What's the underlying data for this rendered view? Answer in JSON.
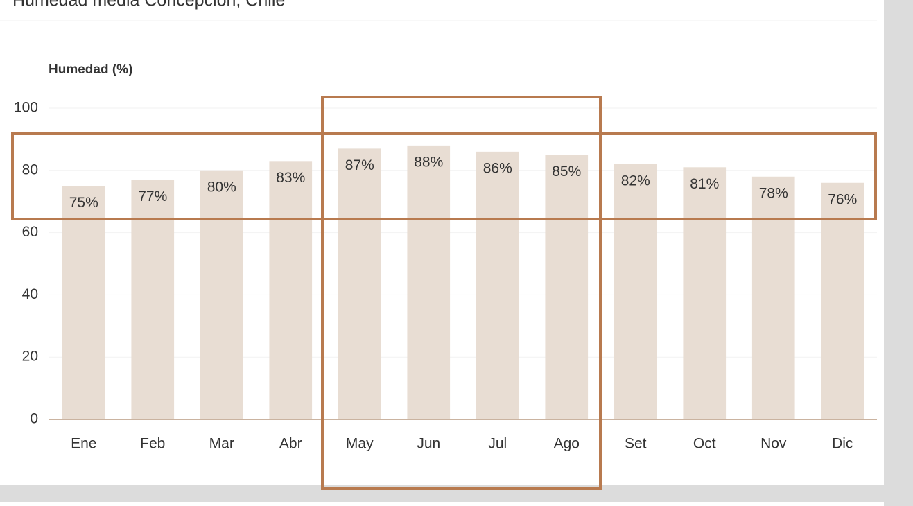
{
  "chart_data": {
    "type": "bar",
    "title": "Humedad media Concepción, Chile",
    "y_axis_label": "Humedad (%)",
    "categories": [
      "Ene",
      "Feb",
      "Mar",
      "Abr",
      "May",
      "Jun",
      "Jul",
      "Ago",
      "Set",
      "Oct",
      "Nov",
      "Dic"
    ],
    "values": [
      75,
      77,
      80,
      83,
      87,
      88,
      86,
      85,
      82,
      81,
      78,
      76
    ],
    "value_labels": [
      "75%",
      "77%",
      "80%",
      "83%",
      "87%",
      "88%",
      "86%",
      "85%",
      "82%",
      "81%",
      "78%",
      "76%"
    ],
    "color": "#e8ddd3",
    "ylim": [
      0,
      100
    ],
    "yticks": [
      0,
      20,
      40,
      60,
      80,
      100
    ],
    "grid": true
  }
}
